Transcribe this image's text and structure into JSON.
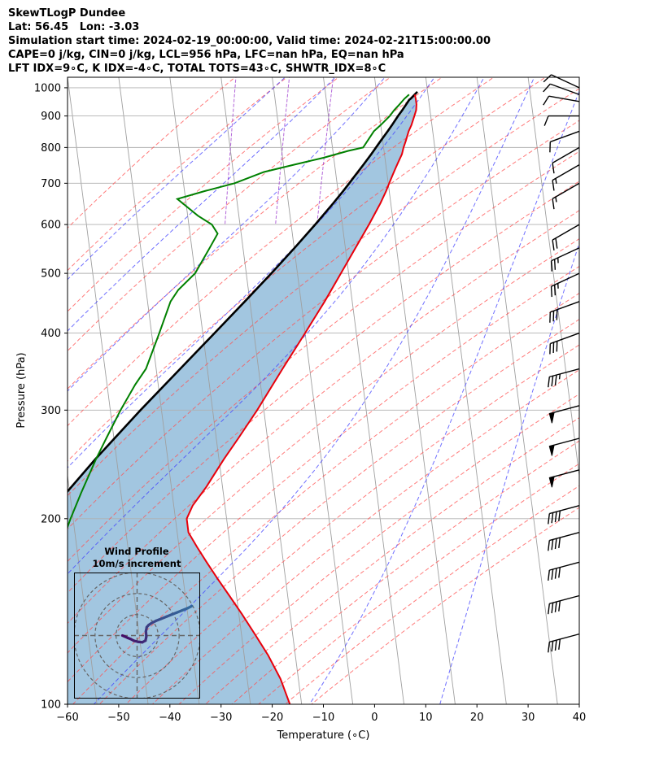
{
  "header": {
    "line1": "SkewTLogP Dundee",
    "line2": "Lat: 56.45   Lon: -3.03",
    "line3": "Simulation start time: 2024-02-19_00:00:00, Valid time: 2024-02-21T15:00:00.00",
    "line4": "CAPE=0 j/kg, CIN=0 j/kg, LCL=956 hPa, LFC=nan hPa, EQ=nan hPa",
    "line5": "LFT IDX=9∘C, K IDX=-4∘C, TOTAL TOTS=43∘C, SHWTR_IDX=8∘C"
  },
  "wind_profile": {
    "title": "Wind Profile",
    "subtitle": "10m/s increment"
  },
  "colors": {
    "temperature": "#e8000b",
    "dewpoint": "#008000",
    "parcel": "#000000",
    "cape_fill": "#a2c6e0",
    "dry_adiabat": "#ff5050",
    "moist_adiabat": "#4040ff",
    "mixing_ratio": "#9933cc",
    "isotherm": "#a0a0a0"
  },
  "chart_data": [
    {
      "type": "line",
      "subtype": "skew-t log-p",
      "xlabel": "Temperature (∘C)",
      "ylabel": "Pressure (hPa)",
      "xlim": [
        -60,
        40
      ],
      "ylim": [
        1040,
        100
      ],
      "y_scale": "log",
      "x_ticks": [
        "−60",
        "−50",
        "−40",
        "−30",
        "−20",
        "−10",
        "0",
        "10",
        "20",
        "30",
        "40"
      ],
      "y_ticks": [
        "100",
        "200",
        "300",
        "400",
        "500",
        "600",
        "700",
        "800",
        "900",
        "1000"
      ],
      "grid": true,
      "series": [
        {
          "key": "temperature",
          "pressure": [
            975,
            960,
            940,
            920,
            900,
            870,
            850,
            820,
            800,
            780,
            760,
            740,
            720,
            700,
            680,
            650,
            600,
            550,
            500,
            450,
            400,
            350,
            300,
            270,
            250,
            225,
            210,
            200,
            190,
            180,
            170,
            160,
            150,
            140,
            130,
            120,
            110,
            100
          ],
          "temperature": [
            7.4,
            7.5,
            7.5,
            7.3,
            6.8,
            6.0,
            5.3,
            4.5,
            3.9,
            3.4,
            2.6,
            1.8,
            1.0,
            0.2,
            -0.6,
            -2.0,
            -4.8,
            -8.0,
            -11.5,
            -15.4,
            -20.0,
            -25.3,
            -31.3,
            -35.7,
            -39.0,
            -43.2,
            -46.3,
            -47.8,
            -47.8,
            -46.5,
            -45.0,
            -43.3,
            -41.4,
            -39.4,
            -37.4,
            -35.3,
            -33.5,
            -32.3
          ]
        },
        {
          "key": "dewpoint",
          "pressure": [
            975,
            960,
            940,
            920,
            900,
            870,
            850,
            800,
            790,
            770,
            750,
            730,
            700,
            680,
            660,
            620,
            600,
            580,
            550,
            500,
            470,
            450,
            400,
            350,
            330,
            300,
            270,
            250,
            220,
            200,
            180,
            170,
            160,
            150,
            140,
            120,
            100
          ],
          "dewpoint": [
            6.3,
            5.3,
            4.2,
            3.0,
            2.0,
            0.0,
            -1.5,
            -4.0,
            -7.0,
            -12.0,
            -18.0,
            -24.0,
            -30.0,
            -36.0,
            -41.6,
            -38.0,
            -35.5,
            -34.6,
            -36.5,
            -40.0,
            -43.7,
            -45.5,
            -48.5,
            -52.0,
            -54.5,
            -58.0,
            -61.5,
            -64.0,
            -67.8,
            -70.5,
            -73.2,
            -77.0,
            -79.8,
            -81.3,
            -82.4,
            -84.7,
            -86.8
          ]
        },
        {
          "key": "parcel",
          "pressure": [
            985,
            960,
            956,
            940,
            920,
            900,
            870,
            850,
            820,
            800,
            780,
            750,
            720,
            700,
            680,
            650,
            600,
            550,
            500,
            450,
            400,
            350,
            300,
            250,
            200,
            150,
            100
          ],
          "temperature": [
            8.0,
            6.5,
            6.2,
            5.5,
            4.6,
            3.6,
            2.2,
            1.2,
            -0.4,
            -1.5,
            -2.6,
            -4.4,
            -6.3,
            -7.6,
            -9.0,
            -11.2,
            -15.3,
            -19.9,
            -25.1,
            -31.0,
            -37.7,
            -45.3,
            -54.1,
            -64.1,
            -75.7,
            -89.5,
            -107.0
          ]
        }
      ],
      "legend": "none"
    },
    {
      "type": "scatter",
      "subtype": "hodograph",
      "title": "Wind Profile",
      "subtitle": "10m/s increment",
      "xlim": [
        -30,
        30
      ],
      "ylim": [
        -30,
        30
      ],
      "rings": [
        10,
        20,
        30
      ],
      "u": [
        7.0,
        8.0,
        9.5,
        11.0,
        12.5,
        14.5,
        16.5,
        18.0,
        18.4,
        18.2,
        18.6,
        19.5,
        21.0,
        23.0,
        25.5,
        28.0,
        30.5,
        33.0,
        35.5,
        38.0,
        40.0
      ],
      "v": [
        11.0,
        10.6,
        9.9,
        9.3,
        8.5,
        8.0,
        7.8,
        8.6,
        10.5,
        13.0,
        15.0,
        16.0,
        17.0,
        18.0,
        19.0,
        20.0,
        21.0,
        22.0,
        23.0,
        24.0,
        25.0
      ]
    }
  ],
  "wind_barbs": {
    "pressure": [
      130,
      150,
      170,
      190,
      210,
      240,
      270,
      305,
      350,
      400,
      450,
      500,
      550,
      600,
      700,
      750,
      800,
      850,
      900,
      950,
      975,
      1000
    ],
    "speed_kt": [
      40,
      40,
      40,
      40,
      40,
      50,
      50,
      50,
      35,
      30,
      30,
      25,
      25,
      20,
      15,
      15,
      10,
      10,
      10,
      10,
      10,
      10
    ],
    "direction_deg": [
      255,
      255,
      255,
      255,
      255,
      255,
      255,
      255,
      255,
      250,
      250,
      245,
      245,
      240,
      240,
      240,
      240,
      250,
      270,
      280,
      290,
      295
    ]
  }
}
